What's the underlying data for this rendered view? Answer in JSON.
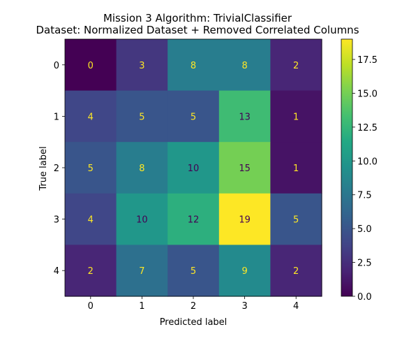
{
  "chart_data": {
    "type": "heatmap",
    "title": "Mission 3 Algorithm: TrivialClassifier",
    "subtitle": "Dataset: Normalized Dataset + Removed Correlated Columns",
    "xlabel": "Predicted label",
    "ylabel": "True label",
    "x_categories": [
      "0",
      "1",
      "2",
      "3",
      "4"
    ],
    "y_categories": [
      "0",
      "1",
      "2",
      "3",
      "4"
    ],
    "values": [
      [
        0,
        3,
        8,
        8,
        2
      ],
      [
        4,
        5,
        5,
        13,
        1
      ],
      [
        5,
        8,
        10,
        15,
        1
      ],
      [
        4,
        10,
        12,
        19,
        5
      ],
      [
        2,
        7,
        5,
        9,
        2
      ]
    ],
    "colormap": "viridis",
    "colorbar": {
      "range": [
        0,
        19
      ],
      "ticks": [
        0.0,
        2.5,
        5.0,
        7.5,
        10.0,
        12.5,
        15.0,
        17.5
      ],
      "tick_labels": [
        "0.0",
        "2.5",
        "5.0",
        "7.5",
        "10.0",
        "12.5",
        "15.0",
        "17.5"
      ]
    },
    "grid": false,
    "text_colors": {
      "light": "#fde725",
      "dark": "#440154"
    }
  }
}
